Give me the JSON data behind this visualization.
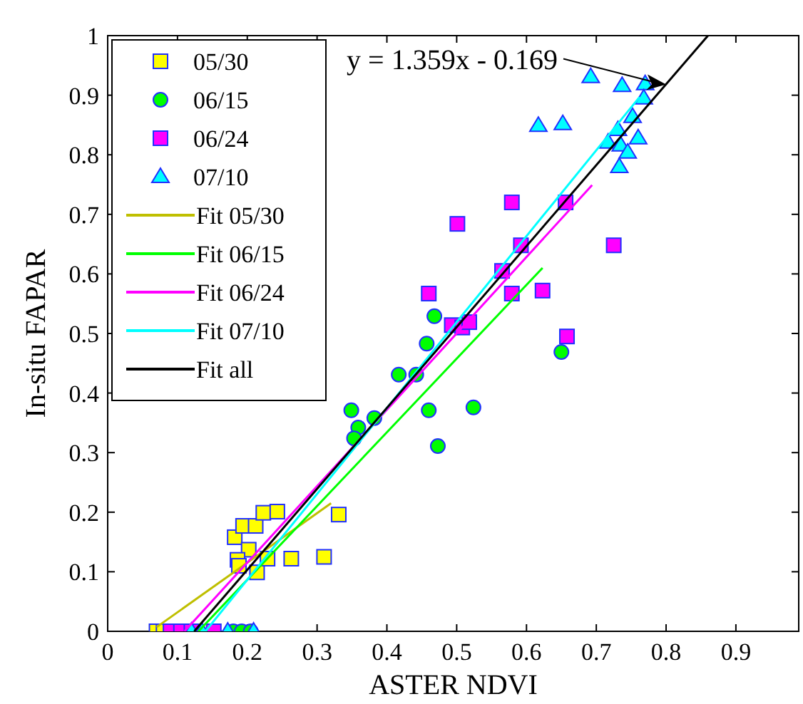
{
  "chart_data": {
    "type": "scatter",
    "xlabel": "ASTER NDVI",
    "ylabel": "In-situ FAPAR",
    "xlim": [
      0,
      0.99
    ],
    "ylim": [
      0,
      1
    ],
    "xticks": [
      0,
      0.1,
      0.2,
      0.3,
      0.4,
      0.5,
      0.6,
      0.7,
      0.8,
      0.9
    ],
    "yticks": [
      0,
      0.1,
      0.2,
      0.3,
      0.4,
      0.5,
      0.6,
      0.7,
      0.8,
      0.9,
      1
    ],
    "grid": false,
    "legend": "top left",
    "annotations": [
      {
        "text": "y = 1.359x - 0.169",
        "x": 0.8,
        "y": 0.918
      }
    ],
    "series": [
      {
        "name": "05/30",
        "marker": "square",
        "color": "#ffff00",
        "x": [
          0.182,
          0.194,
          0.212,
          0.223,
          0.243,
          0.202,
          0.186,
          0.188,
          0.214,
          0.229,
          0.263,
          0.31,
          0.331,
          0.07,
          0.08
        ],
        "values": [
          0.158,
          0.177,
          0.177,
          0.199,
          0.201,
          0.137,
          0.12,
          0.11,
          0.099,
          0.122,
          0.122,
          0.125,
          0.196,
          0,
          0
        ]
      },
      {
        "name": "06/15",
        "marker": "circle",
        "color": "#00ff00",
        "x": [
          0.349,
          0.359,
          0.353,
          0.382,
          0.417,
          0.442,
          0.457,
          0.468,
          0.46,
          0.473,
          0.524,
          0.65,
          0.18,
          0.192,
          0.205
        ],
        "values": [
          0.371,
          0.342,
          0.324,
          0.358,
          0.431,
          0.431,
          0.483,
          0.529,
          0.371,
          0.311,
          0.376,
          0.469,
          0,
          0,
          0
        ]
      },
      {
        "name": "06/24",
        "marker": "square",
        "color": "#ff00ff",
        "x": [
          0.579,
          0.501,
          0.656,
          0.592,
          0.565,
          0.579,
          0.623,
          0.725,
          0.658,
          0.493,
          0.508,
          0.518,
          0.46,
          0.09,
          0.105,
          0.12,
          0.152
        ],
        "values": [
          0.72,
          0.684,
          0.72,
          0.648,
          0.605,
          0.567,
          0.572,
          0.648,
          0.495,
          0.514,
          0.51,
          0.519,
          0.567,
          0,
          0,
          0,
          0
        ]
      },
      {
        "name": "07/10",
        "marker": "triangle",
        "color": "#00ffff",
        "x": [
          0.692,
          0.737,
          0.77,
          0.768,
          0.617,
          0.652,
          0.752,
          0.731,
          0.717,
          0.735,
          0.76,
          0.745,
          0.733,
          0.12,
          0.135,
          0.172,
          0.209
        ],
        "values": [
          0.931,
          0.916,
          0.919,
          0.895,
          0.849,
          0.852,
          0.864,
          0.842,
          0.821,
          0.816,
          0.828,
          0.804,
          0.78,
          0,
          0,
          0,
          0
        ]
      },
      {
        "name": "Fit 05/30",
        "type": "line",
        "marker": "none",
        "color": "#bfbf00",
        "x": [
          0.07,
          0.32
        ],
        "values": [
          0.007,
          0.215
        ]
      },
      {
        "name": "Fit 06/15",
        "type": "line",
        "marker": "none",
        "color": "#00ff00",
        "x": [
          0.13,
          0.623
        ],
        "values": [
          0,
          0.61
        ]
      },
      {
        "name": "Fit 06/24",
        "type": "line",
        "marker": "none",
        "color": "#ff00ff",
        "x": [
          0.11,
          0.694
        ],
        "values": [
          0,
          0.749
        ]
      },
      {
        "name": "Fit 07/10",
        "type": "line",
        "marker": "none",
        "color": "#00ffff",
        "x": [
          0.14,
          0.762
        ],
        "values": [
          0,
          0.897
        ]
      },
      {
        "name": "Fit all",
        "type": "line",
        "marker": "none",
        "color": "#000000",
        "x": [
          0.124,
          0.86
        ],
        "values": [
          0,
          1
        ]
      }
    ]
  }
}
